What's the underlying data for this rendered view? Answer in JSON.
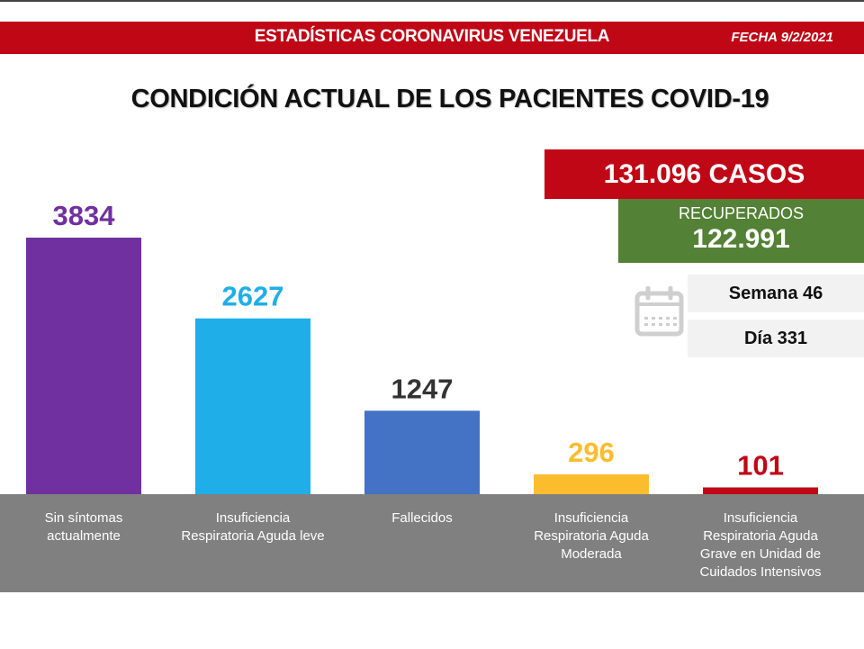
{
  "header": {
    "title": "ESTADÍSTICAS CORONAVIRUS VENEZUELA",
    "date": "FECHA 9/2/2021"
  },
  "summary": {
    "cases": "131.096 CASOS",
    "recovered_label": "RECUPERADOS",
    "recovered_value": "122.991",
    "week": "Semana 46",
    "day": "Día 331",
    "calendar_icon": "calendar-icon"
  },
  "colors": {
    "header_red": "#c00716",
    "recovered_green": "#538135",
    "axis_band": "#808080"
  },
  "chart_data": {
    "type": "bar",
    "title": "CONDICIÓN ACTUAL DE LOS PACIENTES COVID-19",
    "xlabel": "",
    "ylabel": "",
    "ylim": [
      0,
      3834
    ],
    "grid": false,
    "legend": "none",
    "categories": [
      "Sin síntomas actualmente",
      "Insuficiencia Respiratoria Aguda leve",
      "Fallecidos",
      "Insuficiencia Respiratoria Aguda Moderada",
      "Insuficiencia Respiratoria Aguda Grave en Unidad de Cuidados Intensivos"
    ],
    "category_lines": [
      [
        "Sin síntomas",
        "actualmente"
      ],
      [
        "Insuficiencia",
        "Respiratoria Aguda leve"
      ],
      [
        "Fallecidos"
      ],
      [
        "Insuficiencia",
        "Respiratoria Aguda",
        "Moderada"
      ],
      [
        "Insuficiencia",
        "Respiratoria Aguda",
        "Grave en Unidad de",
        "Cuidados Intensivos"
      ]
    ],
    "values": [
      3834,
      2627,
      1247,
      296,
      101
    ],
    "data_labels": [
      "3834",
      "2627",
      "1247",
      "296",
      "101"
    ],
    "bar_colors": [
      "#7030a0",
      "#20aee8",
      "#4472c4",
      "#fbbc2e",
      "#c00716"
    ],
    "label_colors": [
      "#7030a0",
      "#20aee8",
      "#333333",
      "#fbbc2e",
      "#c00716"
    ]
  }
}
